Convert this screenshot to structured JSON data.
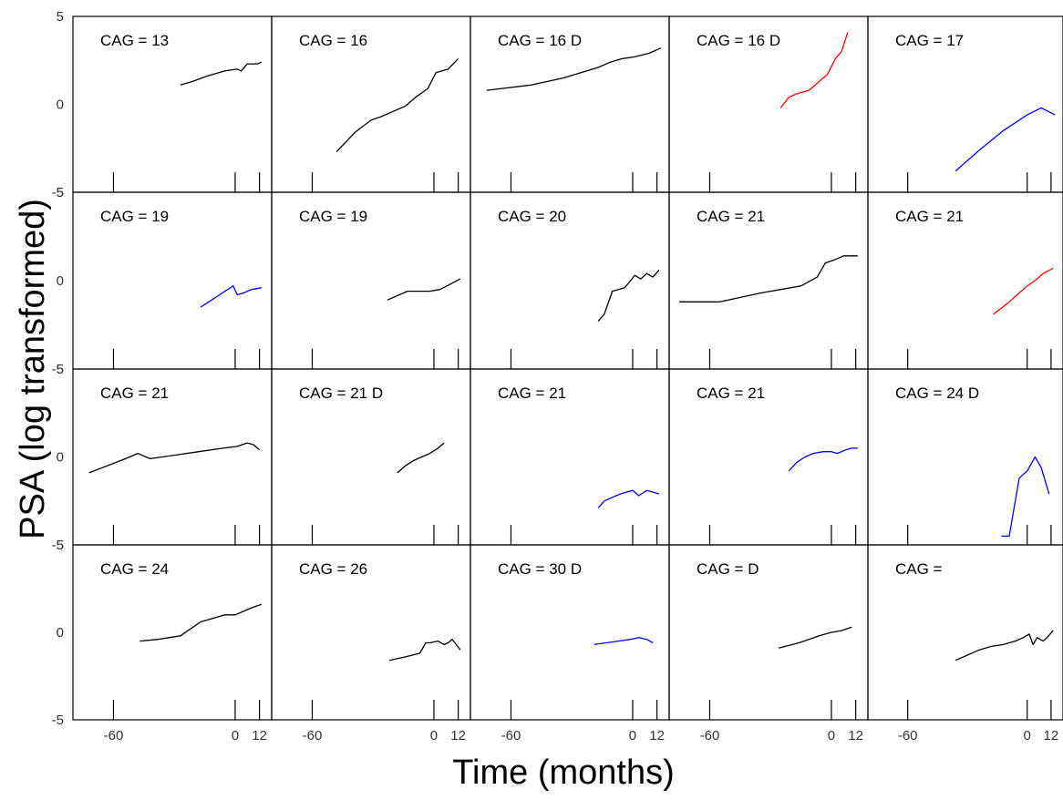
{
  "chart_data": {
    "type": "line",
    "layout": "small-multiples",
    "ylabel": "PSA (log transformed)",
    "xlabel": "Time (months)",
    "ylim": [
      -5,
      5
    ],
    "yticks": [
      5,
      0,
      -5
    ],
    "xticks": [
      -60,
      0,
      12
    ],
    "grid": false,
    "colors": {
      "black": "#000000",
      "red": "#ff0000",
      "blue": "#0000ff"
    },
    "panels": [
      {
        "title": "CAG = 13",
        "color": "black",
        "x": [
          -27,
          -21,
          -14,
          -5,
          1,
          3,
          6,
          11,
          13
        ],
        "y": [
          1.1,
          1.3,
          1.6,
          1.9,
          2.0,
          1.9,
          2.3,
          2.3,
          2.4
        ]
      },
      {
        "title": "CAG = 16",
        "color": "black",
        "x": [
          -48,
          -39,
          -31,
          -26,
          -20,
          -14,
          -9,
          -3,
          1,
          7,
          12
        ],
        "y": [
          -2.7,
          -1.6,
          -0.9,
          -0.7,
          -0.4,
          -0.1,
          0.4,
          0.9,
          1.8,
          2.0,
          2.6
        ]
      },
      {
        "title": "CAG = 16 D",
        "color": "black",
        "x": [
          -72,
          -50,
          -34,
          -17,
          -11,
          -5,
          1,
          8,
          14
        ],
        "y": [
          0.8,
          1.1,
          1.5,
          2.1,
          2.4,
          2.6,
          2.7,
          2.9,
          3.2
        ]
      },
      {
        "title": "CAG = 16 D",
        "color": "red",
        "x": [
          -25,
          -21,
          -17,
          -11,
          -6,
          -2,
          2,
          5,
          8
        ],
        "y": [
          -0.2,
          0.4,
          0.6,
          0.8,
          1.3,
          1.7,
          2.6,
          3.0,
          4.1
        ]
      },
      {
        "title": "CAG = 17",
        "color": "blue",
        "x": [
          -36,
          -24,
          -12,
          0,
          7,
          14
        ],
        "y": [
          -3.8,
          -2.6,
          -1.5,
          -0.6,
          -0.2,
          -0.6
        ]
      },
      {
        "title": "CAG = 19",
        "color": "blue",
        "x": [
          -17,
          -13,
          -9,
          -5,
          -1,
          1,
          4,
          8,
          13
        ],
        "y": [
          -1.5,
          -1.2,
          -0.9,
          -0.6,
          -0.3,
          -0.8,
          -0.7,
          -0.5,
          -0.4
        ]
      },
      {
        "title": "CAG = 19",
        "color": "black",
        "x": [
          -23,
          -17,
          -13,
          -7,
          -2,
          3,
          8,
          13
        ],
        "y": [
          -1.1,
          -0.8,
          -0.6,
          -0.6,
          -0.6,
          -0.5,
          -0.2,
          0.1
        ]
      },
      {
        "title": "CAG = 20",
        "color": "black",
        "x": [
          -17,
          -14,
          -10,
          -7,
          -4,
          -1,
          1,
          4,
          7,
          10,
          13
        ],
        "y": [
          -2.3,
          -1.9,
          -0.6,
          -0.5,
          -0.4,
          0.0,
          0.3,
          0.1,
          0.4,
          0.2,
          0.6
        ]
      },
      {
        "title": "CAG = 21",
        "color": "black",
        "x": [
          -75,
          -55,
          -35,
          -15,
          -7,
          -3,
          2,
          6,
          13
        ],
        "y": [
          -1.2,
          -1.2,
          -0.7,
          -0.3,
          0.2,
          1.0,
          1.2,
          1.4,
          1.4
        ]
      },
      {
        "title": "CAG = 21",
        "color": "red",
        "x": [
          -17,
          -10,
          -5,
          0,
          4,
          8,
          13
        ],
        "y": [
          -1.9,
          -1.3,
          -0.8,
          -0.3,
          0.0,
          0.4,
          0.7
        ]
      },
      {
        "title": "CAG = 21",
        "color": "black",
        "x": [
          -72,
          -54,
          -48,
          -42,
          -30,
          -18,
          -6,
          1,
          6,
          9,
          12
        ],
        "y": [
          -0.9,
          -0.1,
          0.2,
          -0.1,
          0.1,
          0.3,
          0.5,
          0.6,
          0.8,
          0.7,
          0.4
        ]
      },
      {
        "title": "CAG = 21  D",
        "color": "black",
        "x": [
          -18,
          -14,
          -10,
          -6,
          -2,
          2,
          5
        ],
        "y": [
          -0.9,
          -0.5,
          -0.2,
          0.0,
          0.2,
          0.5,
          0.8
        ]
      },
      {
        "title": "CAG = 21",
        "color": "blue",
        "x": [
          -17,
          -14,
          -10,
          -6,
          -3,
          0,
          3,
          7,
          10,
          13
        ],
        "y": [
          -2.9,
          -2.5,
          -2.3,
          -2.1,
          -2.0,
          -1.9,
          -2.2,
          -1.9,
          -2.0,
          -2.1
        ]
      },
      {
        "title": "CAG = 21",
        "color": "blue",
        "x": [
          -21,
          -17,
          -13,
          -9,
          -4,
          0,
          3,
          7,
          10,
          13
        ],
        "y": [
          -0.8,
          -0.3,
          0.0,
          0.2,
          0.3,
          0.3,
          0.2,
          0.4,
          0.5,
          0.5
        ]
      },
      {
        "title": "CAG = 24  D",
        "color": "blue",
        "x": [
          -13,
          -9,
          -4,
          0,
          4,
          7,
          11
        ],
        "y": [
          -4.5,
          -4.5,
          -1.2,
          -0.8,
          0.0,
          -0.6,
          -2.1
        ]
      },
      {
        "title": "CAG = 24",
        "color": "black",
        "x": [
          -47,
          -38,
          -27,
          -17,
          -11,
          -5,
          0,
          4,
          8,
          13
        ],
        "y": [
          -0.5,
          -0.4,
          -0.2,
          0.6,
          0.8,
          1.0,
          1.0,
          1.2,
          1.4,
          1.6
        ]
      },
      {
        "title": "CAG = 26",
        "color": "black",
        "x": [
          -22,
          -14,
          -7,
          -4,
          -2,
          2,
          5,
          7,
          9,
          11,
          13
        ],
        "y": [
          -1.6,
          -1.4,
          -1.2,
          -0.6,
          -0.6,
          -0.5,
          -0.7,
          -0.6,
          -0.4,
          -0.7,
          -1.0
        ]
      },
      {
        "title": "CAG = 30  D",
        "color": "blue",
        "x": [
          -19,
          -13,
          -7,
          -1,
          3,
          7,
          10
        ],
        "y": [
          -0.7,
          -0.6,
          -0.5,
          -0.4,
          -0.3,
          -0.4,
          -0.6
        ]
      },
      {
        "title": "CAG =       D",
        "color": "black",
        "x": [
          -26,
          -16,
          -6,
          0,
          5,
          10
        ],
        "y": [
          -0.9,
          -0.6,
          -0.2,
          0.0,
          0.1,
          0.3
        ]
      },
      {
        "title": "CAG =",
        "color": "black",
        "x": [
          -36,
          -30,
          -24,
          -18,
          -12,
          -6,
          -2,
          1,
          3,
          5,
          8,
          10,
          13
        ],
        "y": [
          -1.6,
          -1.3,
          -1.0,
          -0.8,
          -0.7,
          -0.5,
          -0.3,
          -0.1,
          -0.7,
          -0.3,
          -0.5,
          -0.3,
          0.1
        ]
      }
    ]
  }
}
